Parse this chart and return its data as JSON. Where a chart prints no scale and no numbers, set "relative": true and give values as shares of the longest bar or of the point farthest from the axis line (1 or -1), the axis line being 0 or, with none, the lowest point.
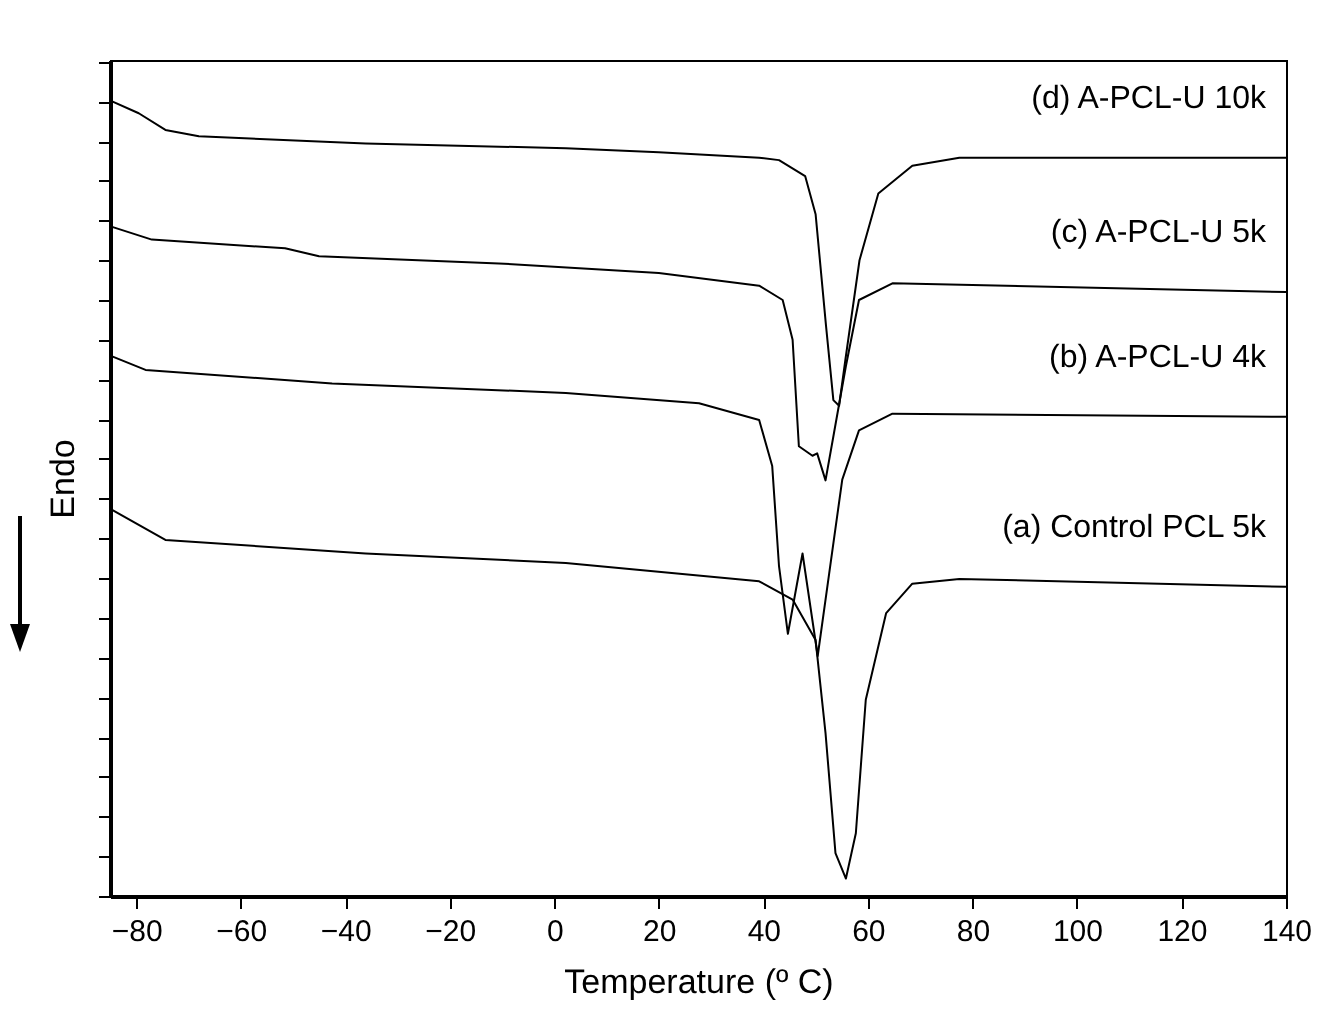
{
  "chart_data": {
    "type": "line",
    "xlabel": "Temperature (º C)",
    "ylabel": "Endo",
    "relative": true,
    "legend": false,
    "grid": false,
    "marker": "none",
    "line_style": "solid",
    "xlim": [
      -85,
      140
    ],
    "xticks": [
      -80,
      -60,
      -40,
      -20,
      0,
      20,
      40,
      60,
      80,
      100,
      120,
      140
    ],
    "series": [
      {
        "name": "(d) A-PCL-U 10k",
        "color": "#000000",
        "x": [
          -84.6,
          -79.5,
          -74.4,
          -68,
          -36.1,
          2.2,
          20,
          39.2,
          43,
          48,
          50,
          52,
          53.4,
          54.5,
          55.7,
          58.4,
          62,
          68.5,
          77.5,
          140
        ],
        "values": [
          1.0,
          0.985,
          0.964,
          0.956,
          0.947,
          0.941,
          0.936,
          0.929,
          0.926,
          0.906,
          0.858,
          0.717,
          0.624,
          0.617,
          0.675,
          0.8,
          0.884,
          0.919,
          0.929,
          0.929
        ]
      },
      {
        "name": "(c) A-PCL-U 5k",
        "color": "#000000",
        "x": [
          -84.6,
          -77,
          -51.5,
          -45,
          -10.6,
          20,
          39.2,
          43.7,
          45.6,
          46.8,
          49.4,
          50.3,
          51.9,
          53.5,
          55.8,
          58.3,
          64.7,
          140
        ],
        "values": [
          0.842,
          0.826,
          0.815,
          0.805,
          0.796,
          0.784,
          0.768,
          0.75,
          0.7,
          0.566,
          0.554,
          0.557,
          0.523,
          0.582,
          0.667,
          0.75,
          0.771,
          0.76
        ]
      },
      {
        "name": "(b) A-PCL-U 4k",
        "color": "#000000",
        "x": [
          -84.6,
          -78.2,
          -42.5,
          2.2,
          27.7,
          39.2,
          41.7,
          43,
          44.7,
          47.5,
          50.4,
          52.6,
          55.1,
          58.3,
          64.7,
          140
        ],
        "values": [
          0.679,
          0.662,
          0.645,
          0.633,
          0.62,
          0.599,
          0.541,
          0.415,
          0.33,
          0.431,
          0.302,
          0.406,
          0.524,
          0.586,
          0.607,
          0.603
        ]
      },
      {
        "name": "(a) Control PCL 5k",
        "color": "#000000",
        "x": [
          -84.6,
          -74.4,
          -36.1,
          2.2,
          39.2,
          45.6,
          50,
          51.9,
          53.8,
          55.8,
          57.7,
          59.6,
          63.5,
          68.5,
          77.5,
          140
        ],
        "values": [
          0.486,
          0.448,
          0.431,
          0.419,
          0.396,
          0.373,
          0.322,
          0.205,
          0.054,
          0.022,
          0.079,
          0.247,
          0.356,
          0.393,
          0.399,
          0.389
        ]
      }
    ]
  }
}
